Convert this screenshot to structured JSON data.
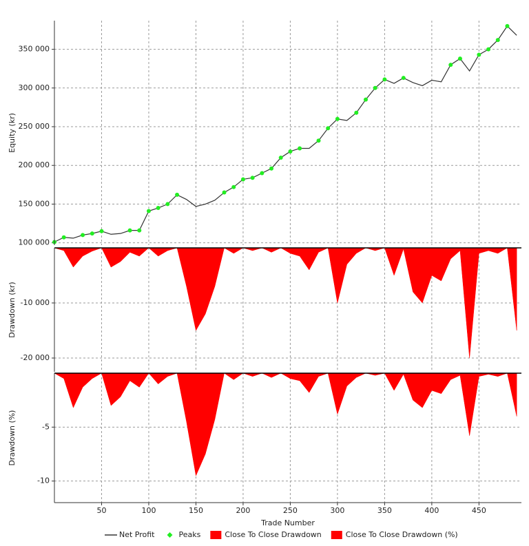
{
  "chart_data": [
    {
      "type": "line",
      "ylabel": "Equity (kr)",
      "xlim": [
        0,
        495
      ],
      "ylim": [
        97000,
        387000
      ],
      "grid": true,
      "yticks": [
        {
          "value": 100000,
          "label": "100 000"
        },
        {
          "value": 150000,
          "label": "150 000"
        },
        {
          "value": 200000,
          "label": "200 000"
        },
        {
          "value": 250000,
          "label": "250 000"
        },
        {
          "value": 300000,
          "label": "300 000"
        },
        {
          "value": 350000,
          "label": "350 000"
        }
      ],
      "series": [
        {
          "name": "Net Profit",
          "type": "line",
          "color": "#333333",
          "x": [
            0,
            10,
            20,
            30,
            40,
            50,
            60,
            70,
            80,
            90,
            100,
            110,
            120,
            130,
            140,
            150,
            160,
            170,
            180,
            190,
            200,
            210,
            220,
            230,
            240,
            250,
            260,
            270,
            280,
            290,
            300,
            310,
            320,
            330,
            340,
            350,
            360,
            370,
            380,
            390,
            400,
            410,
            420,
            430,
            440,
            450,
            460,
            470,
            480,
            490
          ],
          "values": [
            101000,
            107000,
            106000,
            110000,
            112000,
            115000,
            111000,
            112000,
            116000,
            116000,
            141000,
            145000,
            150000,
            162000,
            156000,
            147000,
            150000,
            155000,
            165000,
            172000,
            182000,
            184000,
            190000,
            196000,
            210000,
            218000,
            222000,
            222000,
            232000,
            248000,
            260000,
            258000,
            268000,
            285000,
            300000,
            311000,
            306000,
            313000,
            307000,
            303000,
            310000,
            308000,
            330000,
            338000,
            322000,
            343000,
            350000,
            362000,
            380000,
            368000
          ]
        },
        {
          "name": "Peaks",
          "type": "scatter",
          "color": "#22ee22",
          "x": [
            0,
            10,
            30,
            40,
            50,
            80,
            90,
            100,
            110,
            120,
            130,
            180,
            190,
            200,
            210,
            220,
            230,
            240,
            250,
            260,
            280,
            290,
            300,
            320,
            330,
            340,
            350,
            370,
            420,
            430,
            450,
            460,
            470,
            480
          ],
          "values": [
            101000,
            107000,
            110000,
            112000,
            115000,
            116000,
            116000,
            141000,
            145000,
            150000,
            162000,
            165000,
            172000,
            182000,
            184000,
            190000,
            196000,
            210000,
            218000,
            222000,
            232000,
            248000,
            260000,
            268000,
            285000,
            300000,
            311000,
            313000,
            330000,
            338000,
            343000,
            350000,
            362000,
            380000
          ]
        }
      ]
    },
    {
      "type": "area",
      "ylabel": "Drawdown (kr)",
      "xlim": [
        0,
        495
      ],
      "ylim": [
        -22500,
        0
      ],
      "grid": true,
      "yticks": [
        {
          "value": -10000,
          "label": "-10 000"
        },
        {
          "value": -20000,
          "label": "-20 000"
        }
      ],
      "series": [
        {
          "name": "Close To Close Drawdown",
          "color": "#ff0000",
          "x": [
            0,
            10,
            20,
            30,
            40,
            50,
            60,
            70,
            80,
            90,
            100,
            110,
            120,
            130,
            140,
            150,
            160,
            170,
            180,
            190,
            200,
            210,
            220,
            230,
            240,
            250,
            260,
            270,
            280,
            290,
            300,
            310,
            320,
            330,
            340,
            350,
            360,
            370,
            380,
            390,
            400,
            410,
            420,
            430,
            440,
            450,
            460,
            470,
            480,
            490
          ],
          "values": [
            0,
            -500,
            -3500,
            -1500,
            -600,
            0,
            -3500,
            -2500,
            -800,
            -1500,
            0,
            -1500,
            -500,
            0,
            -7000,
            -15000,
            -12000,
            -7000,
            0,
            -1000,
            0,
            -500,
            0,
            -800,
            0,
            -1000,
            -1500,
            -4000,
            -800,
            0,
            -10000,
            -3000,
            -1000,
            0,
            -500,
            0,
            -5000,
            -200,
            -8000,
            -10000,
            -5000,
            -6000,
            -2000,
            -500,
            -20000,
            -1000,
            -500,
            -1000,
            0,
            -15000
          ]
        }
      ]
    },
    {
      "type": "area",
      "ylabel": "Drawdown (%)",
      "xlim": [
        0,
        495
      ],
      "ylim": [
        -12,
        0
      ],
      "grid": true,
      "yticks": [
        -5,
        -10
      ],
      "xlabel": "Trade Number",
      "xticks": [
        50,
        100,
        150,
        200,
        250,
        300,
        350,
        400,
        450
      ],
      "series": [
        {
          "name": "Close To Close Drawdown (%)",
          "color": "#ff0000",
          "x": [
            0,
            10,
            20,
            30,
            40,
            50,
            60,
            70,
            80,
            90,
            100,
            110,
            120,
            130,
            140,
            150,
            160,
            170,
            180,
            190,
            200,
            210,
            220,
            230,
            240,
            250,
            260,
            270,
            280,
            290,
            300,
            310,
            320,
            330,
            340,
            350,
            360,
            370,
            380,
            390,
            400,
            410,
            420,
            430,
            440,
            450,
            460,
            470,
            480,
            490
          ],
          "values": [
            0,
            -0.5,
            -3.2,
            -1.3,
            -0.5,
            0,
            -3,
            -2.2,
            -0.7,
            -1.3,
            0,
            -1,
            -0.3,
            0,
            -4.5,
            -9.5,
            -7.5,
            -4.3,
            0,
            -0.6,
            0,
            -0.3,
            0,
            -0.4,
            0,
            -0.5,
            -0.7,
            -1.8,
            -0.3,
            0,
            -3.8,
            -1.2,
            -0.4,
            0,
            -0.2,
            0,
            -1.6,
            -0.1,
            -2.5,
            -3.2,
            -1.6,
            -1.9,
            -0.6,
            -0.2,
            -5.8,
            -0.3,
            -0.1,
            -0.3,
            0,
            -4
          ]
        }
      ]
    }
  ]
}
